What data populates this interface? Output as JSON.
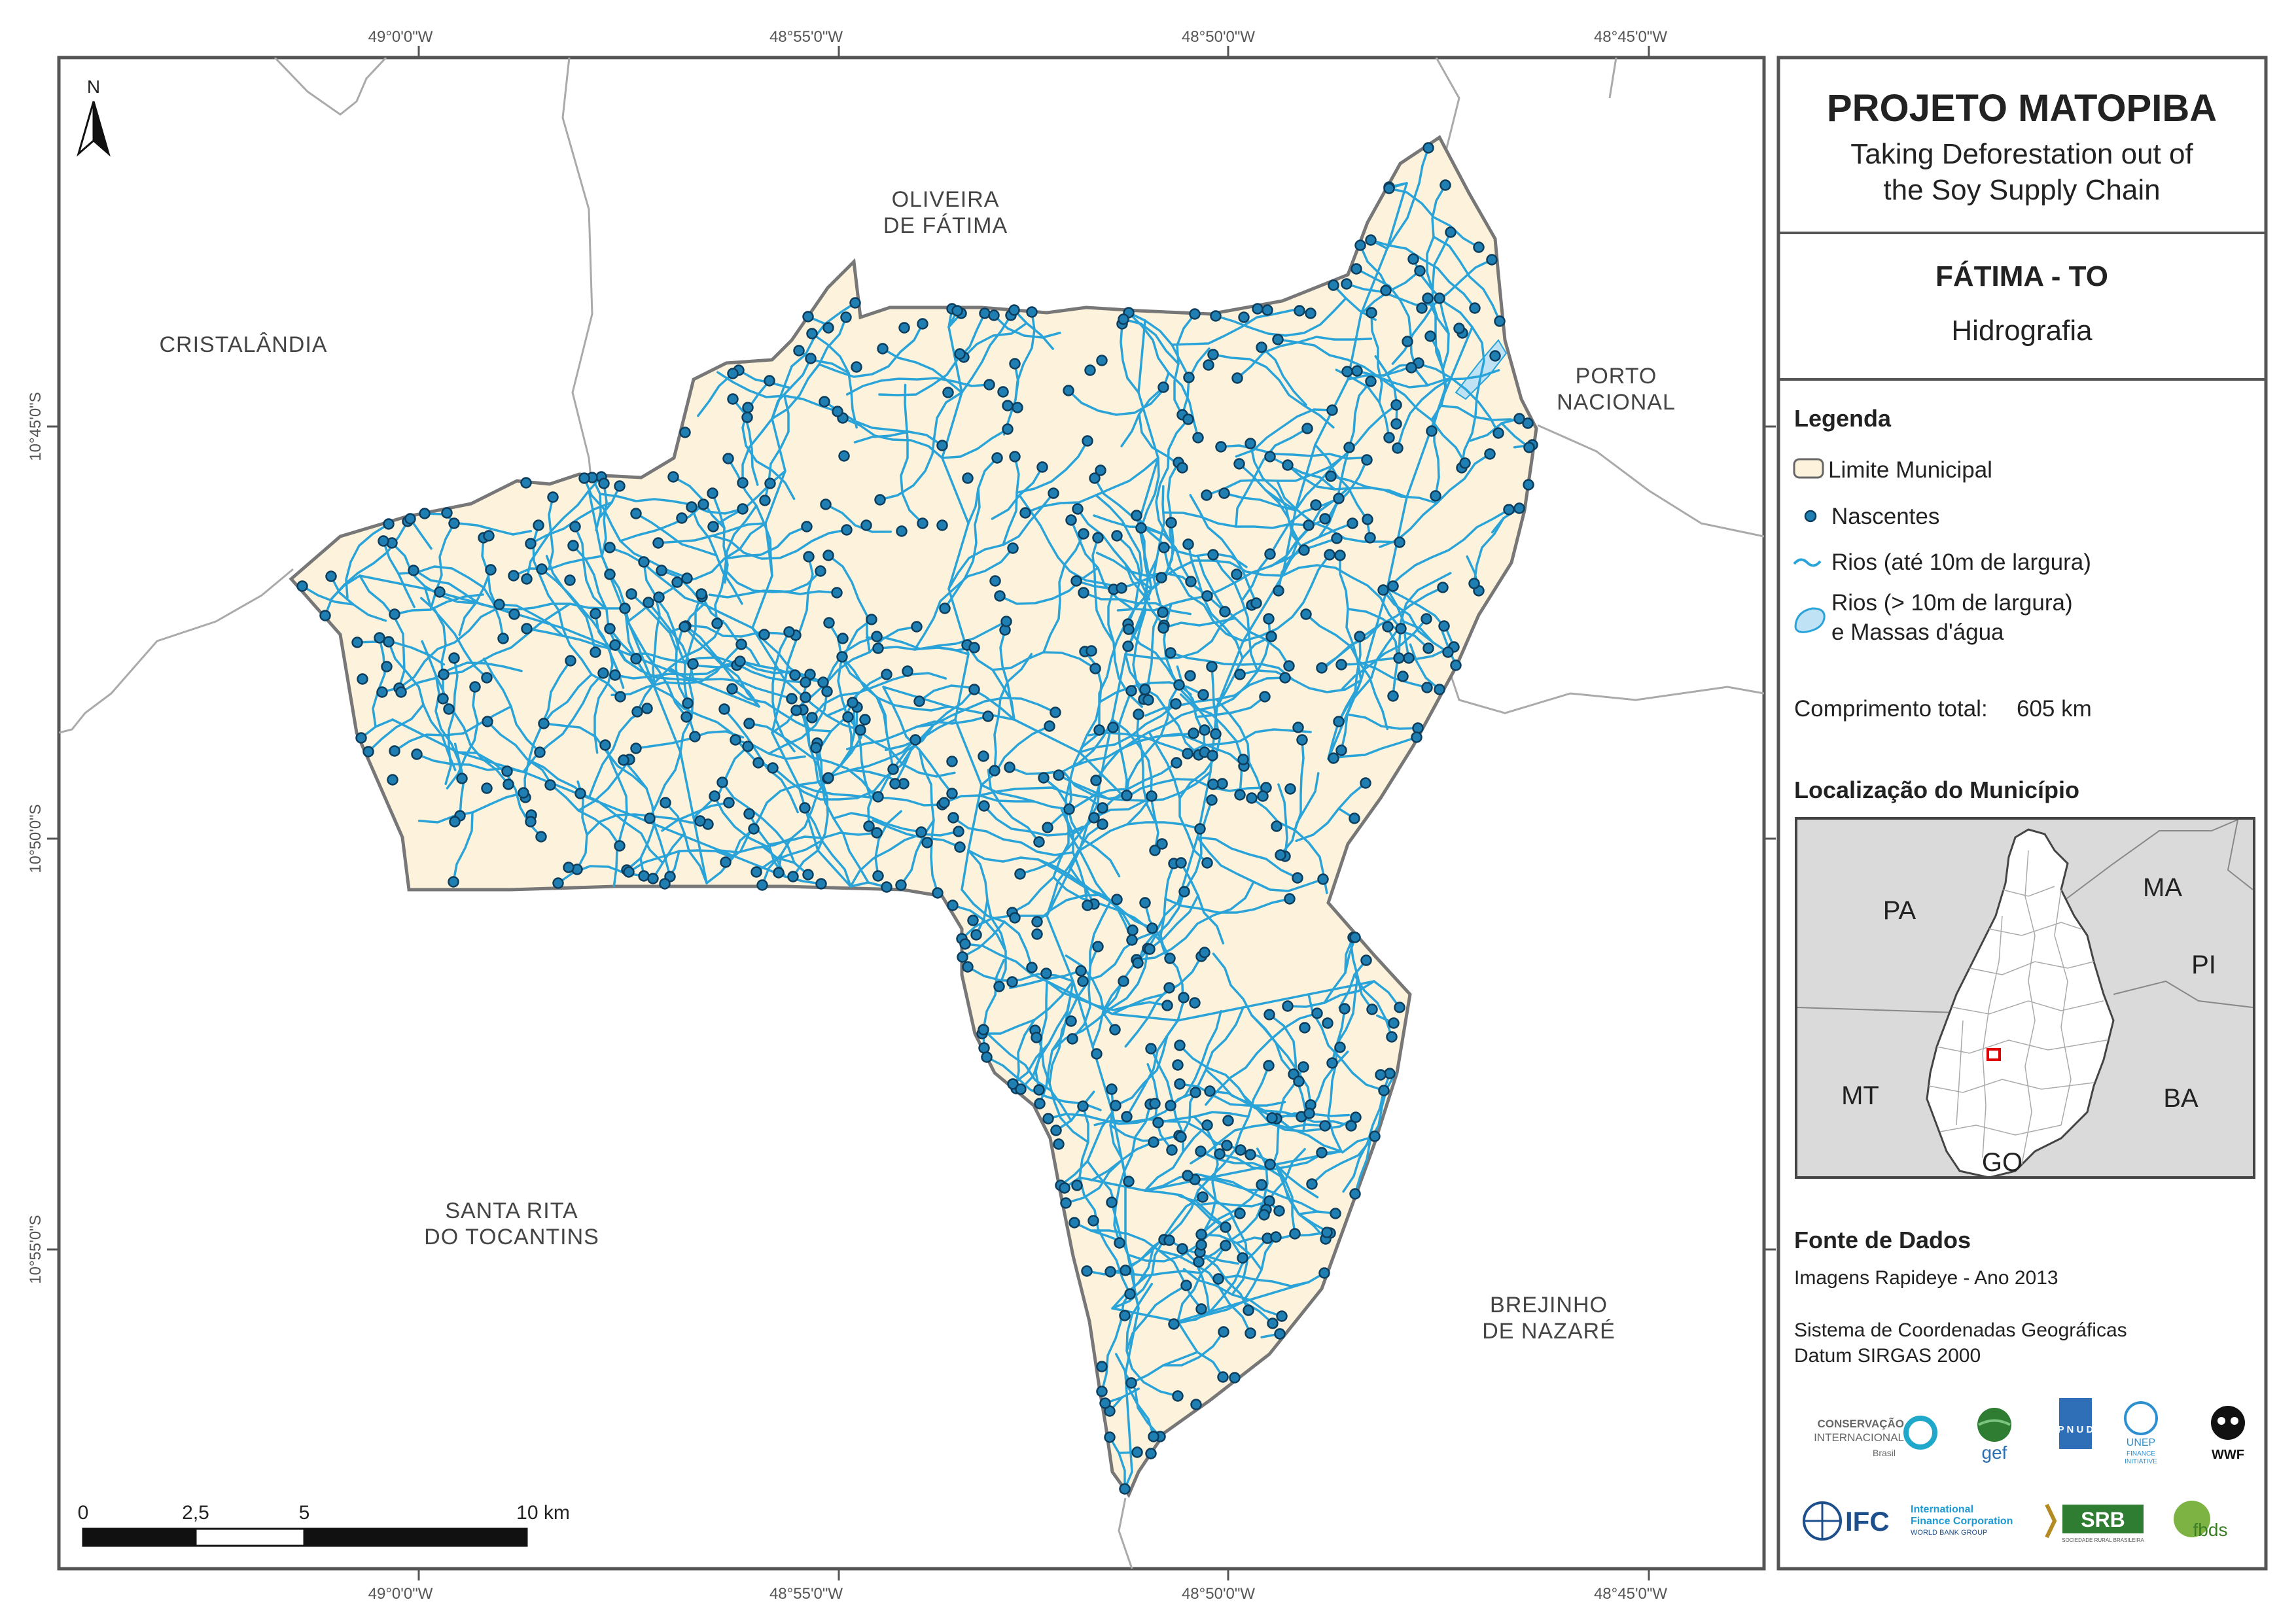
{
  "map": {
    "graticule": {
      "top": [
        "49°0'0\"W",
        "48°55'0\"W",
        "48°50'0\"W",
        "48°45'0\"W"
      ],
      "bottom": [
        "49°0'0\"W",
        "48°55'0\"W",
        "48°50'0\"W",
        "48°45'0\"W"
      ],
      "left": [
        "10°45'0\"S",
        "10°50'0\"S",
        "10°55'0\"S"
      ]
    },
    "places": {
      "cristalandia": "CRISTALÂNDIA",
      "oliveira_1": "OLIVEIRA",
      "oliveira_2": "DE FÁTIMA",
      "porto_1": "PORTO",
      "porto_2": "NACIONAL",
      "santa_1": "SANTA RITA",
      "santa_2": "DO TOCANTINS",
      "brejinho_1": "BREJINHO",
      "brejinho_2": "DE NAZARÉ"
    },
    "north_label": "N",
    "scale": {
      "labels": [
        "0",
        "2,5",
        "5",
        "10 km"
      ]
    },
    "colors": {
      "municipality_fill": "#fdf3dc",
      "river": "#29a3d8",
      "spring": "#1f7fb3",
      "spring_outline": "#0c3d5c",
      "boundary": "#777777"
    }
  },
  "panel": {
    "title": "PROJETO MATOPIBA",
    "subtitle_1": "Taking Deforestation out of",
    "subtitle_2": "the Soy Supply Chain",
    "municipality": "FÁTIMA - TO",
    "theme": "Hidrografia",
    "legend": {
      "heading": "Legenda",
      "limite": "Limite Municipal",
      "nascentes": "Nascentes",
      "rios_small": "Rios (até 10m de largura)",
      "rios_large_1": "Rios (> 10m de largura)",
      "rios_large_2": "e Massas d'água",
      "comprimento_label": "Comprimento total:",
      "comprimento_value": "605 km"
    },
    "location": {
      "heading": "Localização do Município",
      "states": [
        "PA",
        "MA",
        "PI",
        "MT",
        "BA",
        "GO"
      ]
    },
    "source": {
      "heading": "Fonte de Dados",
      "line1": "Imagens Rapideye - Ano 2013",
      "line2": "Sistema de Coordenadas Geográficas",
      "line3": "Datum SIRGAS 2000"
    },
    "logos": {
      "ci_1": "CONSERVAÇÃO",
      "ci_2": "INTERNACIONAL",
      "ci_3": "Brasil",
      "gef": "gef",
      "undp": "P N U D",
      "unep_1": "UNEP",
      "unep_2": "FINANCE",
      "unep_3": "INITIATIVE",
      "wwf": "WWF",
      "ifc": "IFC",
      "ifc_1": "International",
      "ifc_2": "Finance Corporation",
      "ifc_3": "WORLD BANK GROUP",
      "srb": "SRB",
      "srb_sub": "SOCIEDADE RURAL BRASILEIRA",
      "fbds": "fbds"
    }
  }
}
